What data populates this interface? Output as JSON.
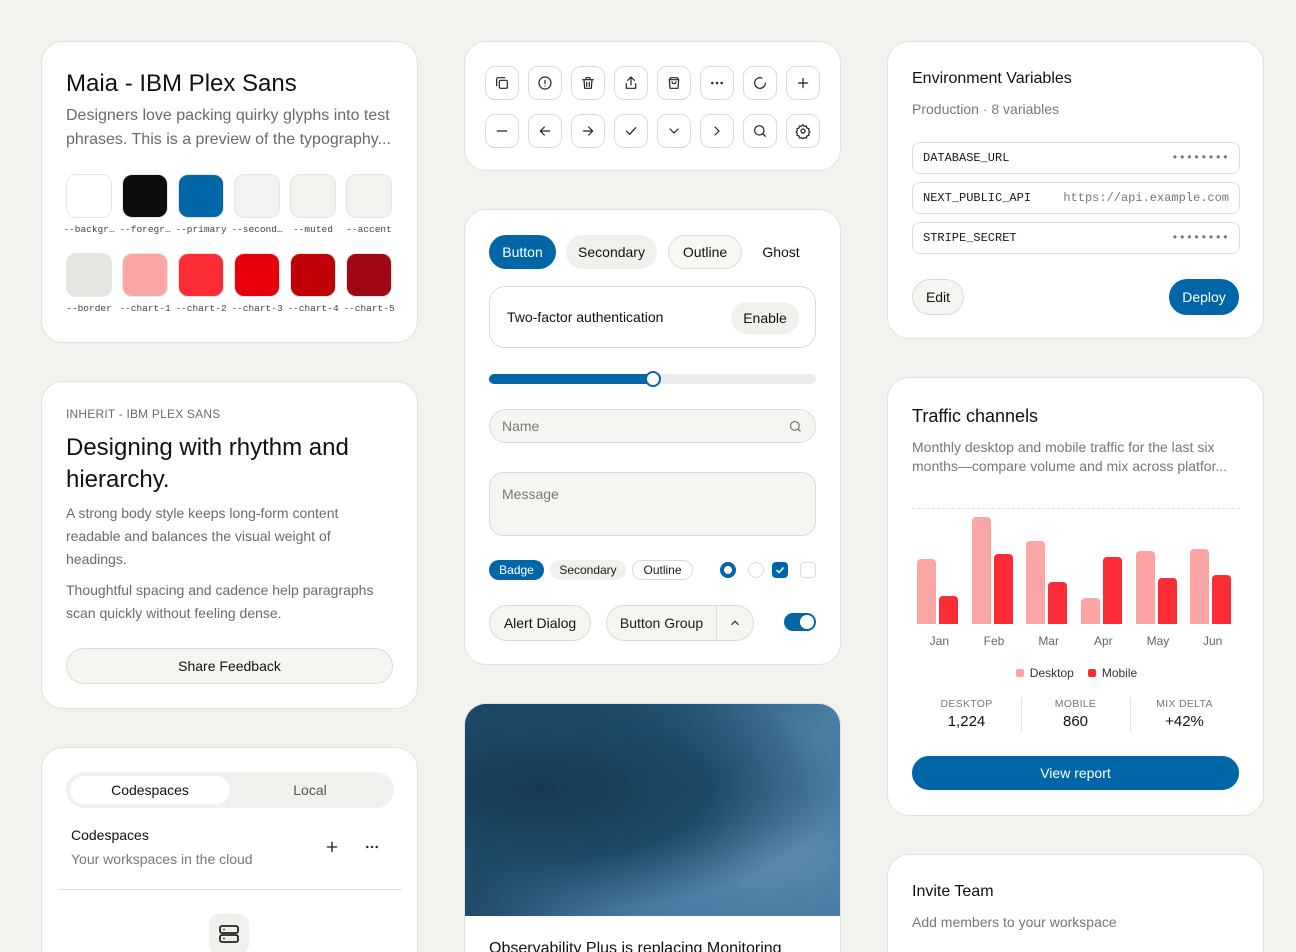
{
  "typography_card": {
    "title": "Maia - IBM Plex Sans",
    "desc_line1": "Designers love packing quirky glyphs into test",
    "desc_line2": "phrases. This is a preview of the typography...",
    "swatch_row1": [
      {
        "label": "--backgr…",
        "color": "#ffffff"
      },
      {
        "label": "--foregr…",
        "color": "#0d0d0d"
      },
      {
        "label": "--primary",
        "color": "#0066a8"
      },
      {
        "label": "--second…",
        "color": "#f3f3f3"
      },
      {
        "label": "--muted",
        "color": "#f2f2ee"
      },
      {
        "label": "--accent",
        "color": "#f2f2ee"
      }
    ],
    "swatch_row2": [
      {
        "label": "--border",
        "color": "#e5e5e0"
      },
      {
        "label": "--chart-1",
        "color": "#fca5a5"
      },
      {
        "label": "--chart-2",
        "color": "#fb2c36"
      },
      {
        "label": "--chart-3",
        "color": "#e7000b"
      },
      {
        "label": "--chart-4",
        "color": "#c10007"
      },
      {
        "label": "--chart-5",
        "color": "#9f0712"
      }
    ]
  },
  "icon_card": {
    "icons": [
      "copy-icon",
      "alert-circle-icon",
      "trash-icon",
      "share-icon",
      "shopping-bag-icon",
      "more-horizontal-icon",
      "loader-icon",
      "plus-icon",
      "minus-icon",
      "arrow-left-icon",
      "arrow-right-icon",
      "check-icon",
      "chevron-down-icon",
      "chevron-right-icon",
      "search-icon",
      "settings-icon"
    ]
  },
  "text_card": {
    "eyebrow": "INHERIT - IBM PLEX SANS",
    "heading": "Designing with rhythm and hierarchy.",
    "body1": "A strong body style keeps long-form content readable and balances the visual weight of headings.",
    "body2": "Thoughtful spacing and cadence help paragraphs scan quickly without feeling dense.",
    "button": "Share Feedback"
  },
  "workspace_card": {
    "tabs": [
      "Codespaces",
      "Local"
    ],
    "title": "Codespaces",
    "subtitle": "Your workspaces in the cloud"
  },
  "components_card": {
    "buttons": [
      "Button",
      "Secondary",
      "Outline",
      "Ghost"
    ],
    "twofa_label": "Two-factor authentication",
    "twofa_button": "Enable",
    "slider_value": 0.5,
    "name_placeholder": "Name",
    "message_placeholder": "Message",
    "badges": [
      "Badge",
      "Secondary",
      "Outline"
    ],
    "alert_dialog": "Alert Dialog",
    "button_group": "Button Group",
    "switch_on": true,
    "primary_color": "#0066a8"
  },
  "media_card": {
    "caption": "Observability Plus is replacing Monitoring"
  },
  "env_card": {
    "title": "Environment Variables",
    "subtitle": "Production · 8 variables",
    "vars": [
      {
        "key": "DATABASE_URL",
        "value": "••••••••"
      },
      {
        "key": "NEXT_PUBLIC_API",
        "value": "https://api.example.com"
      },
      {
        "key": "STRIPE_SECRET",
        "value": "••••••••"
      }
    ],
    "edit": "Edit",
    "deploy": "Deploy"
  },
  "traffic_card": {
    "title": "Traffic channels",
    "desc_line1": "Monthly desktop and mobile traffic for the last six",
    "desc_line2": "months—compare volume and mix across platfor...",
    "stats": [
      {
        "label": "DESKTOP",
        "value": "1,224"
      },
      {
        "label": "MOBILE",
        "value": "860"
      },
      {
        "label": "MIX DELTA",
        "value": "+42%"
      }
    ],
    "button": "View report"
  },
  "chart_data": {
    "type": "bar",
    "categories": [
      "Jan",
      "Feb",
      "Mar",
      "Apr",
      "May",
      "Jun"
    ],
    "series": [
      {
        "name": "Desktop",
        "color": "#fca5a5",
        "values": [
          186,
          305,
          237,
          73,
          209,
          214
        ]
      },
      {
        "name": "Mobile",
        "color": "#fb2c36",
        "values": [
          80,
          200,
          120,
          190,
          130,
          140
        ]
      }
    ],
    "ylim": [
      0,
      330
    ],
    "grid": true,
    "legend": "bottom"
  },
  "invite_card": {
    "title": "Invite Team",
    "subtitle": "Add members to your workspace"
  }
}
